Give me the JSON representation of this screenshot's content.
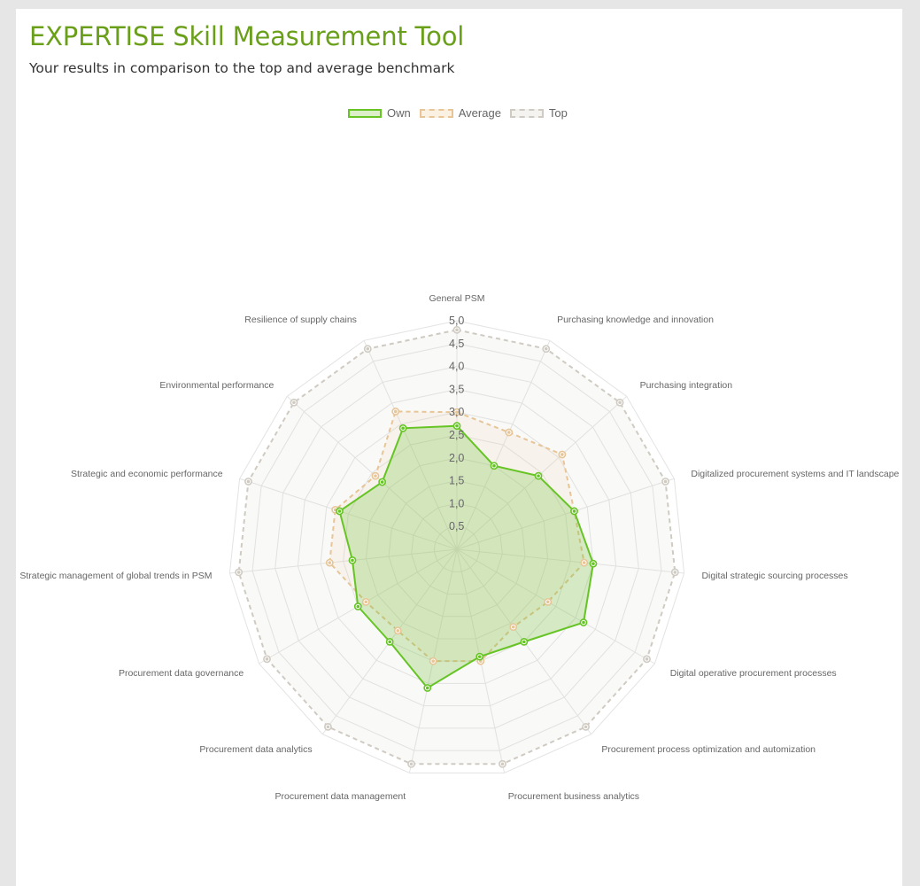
{
  "header": {
    "title": "EXPERTISE Skill Measurement Tool",
    "subtitle": "Your results in comparison to the top and average benchmark"
  },
  "legend": [
    {
      "key": "own",
      "label": "Own"
    },
    {
      "key": "avg",
      "label": "Average"
    },
    {
      "key": "top",
      "label": "Top"
    }
  ],
  "chart_data": {
    "type": "radar",
    "categories": [
      "General PSM",
      "Purchasing knowledge and innovation",
      "Purchasing integration",
      "Digitalized procurement systems and IT landscape",
      "Digital strategic sourcing processes",
      "Digital operative procurement processes",
      "Procurement process optimization and automization",
      "Procurement business analytics",
      "Procurement data management",
      "Procurement data analytics",
      "Procurement data governance",
      "Strategic management of global trends in PSM",
      "Strategic and economic performance",
      "Environmental performance",
      "Resilience of supply chains"
    ],
    "r_ticks": [
      "0,5",
      "1,0",
      "1,5",
      "2,0",
      "2,5",
      "3,0",
      "3,5",
      "4,0",
      "4,5",
      "5,0"
    ],
    "rlim": [
      0,
      5
    ],
    "legend_position": "top",
    "series": [
      {
        "name": "Own",
        "values": [
          2.7,
          2.0,
          2.4,
          2.7,
          3.0,
          3.2,
          2.5,
          2.4,
          3.1,
          2.5,
          2.5,
          2.3,
          2.7,
          2.2,
          2.9
        ],
        "stroke": "#66c425",
        "fill": "rgba(120,195,60,0.28)",
        "dash": ""
      },
      {
        "name": "Average",
        "values": [
          3.0,
          2.8,
          3.1,
          2.7,
          2.8,
          2.3,
          2.1,
          2.5,
          2.5,
          2.2,
          2.3,
          2.8,
          2.8,
          2.4,
          3.3
        ],
        "stroke": "#e7c596",
        "fill": "rgba(240,205,155,0.12)",
        "dash": "5,4"
      },
      {
        "name": "Top",
        "values": [
          4.8,
          4.8,
          4.8,
          4.8,
          4.8,
          4.8,
          4.8,
          4.8,
          4.8,
          4.8,
          4.8,
          4.8,
          4.8,
          4.8,
          4.8
        ],
        "stroke": "#cfcbc2",
        "fill": "rgba(220,218,210,0.16)",
        "dash": "5,4"
      }
    ],
    "colors": {
      "grid": "#e3e3e3",
      "own": "#66c425",
      "average": "#e7c596",
      "top": "#cfcbc2"
    }
  }
}
